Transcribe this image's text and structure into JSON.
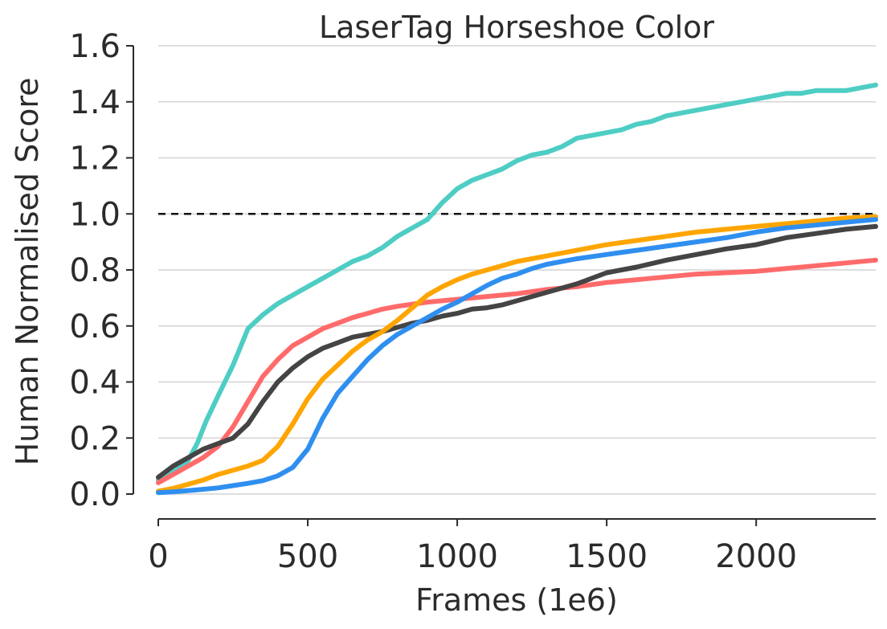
{
  "chart_data": {
    "type": "line",
    "title": "LaserTag Horseshoe Color",
    "xlabel": "Frames (1e6)",
    "ylabel": "Human Normalised Score",
    "xlim": [
      0,
      2400
    ],
    "ylim": [
      0.0,
      1.6
    ],
    "x_ticks": [
      0,
      500,
      1000,
      1500,
      2000
    ],
    "x_tick_labels": [
      "0",
      "500",
      "1000",
      "1500",
      "2000"
    ],
    "y_ticks": [
      0.0,
      0.2,
      0.4,
      0.6,
      0.8,
      1.0,
      1.2,
      1.4,
      1.6
    ],
    "y_tick_labels": [
      "0.0",
      "0.2",
      "0.4",
      "0.6",
      "0.8",
      "1.0",
      "1.2",
      "1.4",
      "1.6"
    ],
    "grid": "horizontal",
    "legend": "none",
    "reference_line": {
      "y": 1.0,
      "style": "dashed",
      "color": "#111111"
    },
    "series": [
      {
        "color": "#4ecdc4",
        "x": [
          0,
          50,
          100,
          130,
          160,
          200,
          250,
          300,
          350,
          400,
          450,
          500,
          550,
          600,
          650,
          700,
          750,
          800,
          850,
          900,
          950,
          1000,
          1050,
          1100,
          1150,
          1200,
          1250,
          1300,
          1350,
          1400,
          1450,
          1500,
          1550,
          1600,
          1650,
          1700,
          1750,
          1800,
          1850,
          1900,
          1950,
          2000,
          2050,
          2100,
          2150,
          2200,
          2250,
          2300,
          2350,
          2400
        ],
        "values": [
          0.05,
          0.08,
          0.12,
          0.18,
          0.26,
          0.35,
          0.46,
          0.59,
          0.64,
          0.68,
          0.71,
          0.74,
          0.77,
          0.8,
          0.83,
          0.85,
          0.88,
          0.92,
          0.95,
          0.98,
          1.04,
          1.09,
          1.12,
          1.14,
          1.16,
          1.19,
          1.21,
          1.22,
          1.24,
          1.27,
          1.28,
          1.29,
          1.3,
          1.32,
          1.33,
          1.35,
          1.36,
          1.37,
          1.38,
          1.39,
          1.4,
          1.41,
          1.42,
          1.43,
          1.43,
          1.44,
          1.44,
          1.44,
          1.45,
          1.46
        ]
      },
      {
        "color": "#ff6b6b",
        "x": [
          0,
          50,
          100,
          150,
          200,
          250,
          300,
          350,
          400,
          450,
          500,
          550,
          600,
          650,
          700,
          750,
          800,
          900,
          1000,
          1100,
          1200,
          1300,
          1400,
          1500,
          1600,
          1700,
          1800,
          1900,
          2000,
          2100,
          2200,
          2300,
          2400
        ],
        "values": [
          0.04,
          0.07,
          0.1,
          0.13,
          0.17,
          0.24,
          0.33,
          0.42,
          0.48,
          0.53,
          0.56,
          0.59,
          0.61,
          0.63,
          0.645,
          0.66,
          0.67,
          0.685,
          0.695,
          0.705,
          0.715,
          0.73,
          0.74,
          0.755,
          0.765,
          0.775,
          0.785,
          0.79,
          0.795,
          0.805,
          0.815,
          0.825,
          0.835
        ]
      },
      {
        "color": "#444444",
        "x": [
          0,
          50,
          100,
          150,
          200,
          250,
          300,
          350,
          400,
          450,
          500,
          550,
          600,
          650,
          700,
          750,
          800,
          850,
          900,
          950,
          1000,
          1050,
          1100,
          1150,
          1200,
          1300,
          1400,
          1500,
          1600,
          1700,
          1800,
          1900,
          2000,
          2100,
          2200,
          2300,
          2400
        ],
        "values": [
          0.06,
          0.1,
          0.13,
          0.16,
          0.18,
          0.2,
          0.25,
          0.33,
          0.4,
          0.45,
          0.49,
          0.52,
          0.54,
          0.56,
          0.57,
          0.58,
          0.595,
          0.61,
          0.62,
          0.635,
          0.645,
          0.66,
          0.665,
          0.675,
          0.69,
          0.72,
          0.75,
          0.79,
          0.81,
          0.835,
          0.855,
          0.875,
          0.89,
          0.915,
          0.93,
          0.945,
          0.955
        ]
      },
      {
        "color": "#ffa500",
        "x": [
          0,
          50,
          100,
          150,
          200,
          250,
          300,
          350,
          400,
          450,
          500,
          550,
          600,
          650,
          700,
          750,
          800,
          850,
          900,
          950,
          1000,
          1050,
          1100,
          1150,
          1200,
          1300,
          1400,
          1500,
          1600,
          1700,
          1800,
          1900,
          2000,
          2100,
          2200,
          2300,
          2400
        ],
        "values": [
          0.01,
          0.02,
          0.035,
          0.05,
          0.07,
          0.085,
          0.1,
          0.12,
          0.17,
          0.25,
          0.34,
          0.41,
          0.46,
          0.51,
          0.55,
          0.58,
          0.62,
          0.665,
          0.71,
          0.74,
          0.765,
          0.785,
          0.8,
          0.815,
          0.83,
          0.85,
          0.87,
          0.89,
          0.905,
          0.92,
          0.935,
          0.945,
          0.955,
          0.965,
          0.975,
          0.985,
          0.99
        ]
      },
      {
        "color": "#2f8ff0",
        "x": [
          0,
          50,
          100,
          150,
          200,
          250,
          300,
          350,
          400,
          450,
          500,
          550,
          600,
          650,
          700,
          750,
          800,
          850,
          900,
          950,
          1000,
          1050,
          1100,
          1150,
          1200,
          1250,
          1300,
          1400,
          1500,
          1600,
          1700,
          1800,
          1900,
          2000,
          2100,
          2200,
          2300,
          2400
        ],
        "values": [
          0.005,
          0.008,
          0.012,
          0.017,
          0.022,
          0.03,
          0.038,
          0.048,
          0.065,
          0.095,
          0.16,
          0.27,
          0.36,
          0.42,
          0.48,
          0.53,
          0.57,
          0.6,
          0.63,
          0.66,
          0.685,
          0.715,
          0.745,
          0.77,
          0.785,
          0.805,
          0.82,
          0.84,
          0.855,
          0.87,
          0.885,
          0.9,
          0.915,
          0.935,
          0.95,
          0.96,
          0.97,
          0.98
        ]
      }
    ]
  }
}
